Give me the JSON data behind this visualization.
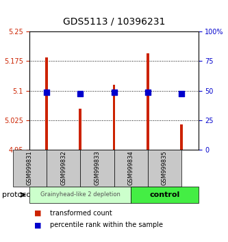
{
  "title": "GDS5113 / 10396231",
  "samples": [
    "GSM999831",
    "GSM999832",
    "GSM999833",
    "GSM999834",
    "GSM999835"
  ],
  "transformed_counts": [
    5.185,
    5.055,
    5.115,
    5.195,
    5.015
  ],
  "percentile_ranks": [
    48.5,
    47.5,
    48.5,
    48.5,
    47.5
  ],
  "baseline": 4.95,
  "ylim_left": [
    4.95,
    5.25
  ],
  "ylim_right": [
    0,
    100
  ],
  "yticks_left": [
    4.95,
    5.025,
    5.1,
    5.175,
    5.25
  ],
  "ytick_labels_left": [
    "4.95",
    "5.025",
    "5.1",
    "5.175",
    "5.25"
  ],
  "yticks_right": [
    0,
    25,
    50,
    75,
    100
  ],
  "ytick_labels_right": [
    "0",
    "25",
    "50",
    "75",
    "100%"
  ],
  "bar_color": "#cc2200",
  "dot_color": "#0000cc",
  "group1_label": "Grainyhead-like 2 depletion",
  "group2_label": "control",
  "group1_bg": "#ccffcc",
  "group2_bg": "#44ee44",
  "label_bg": "#c8c8c8",
  "protocol_label": "protocol",
  "legend_red": "transformed count",
  "legend_blue": "percentile rank within the sample",
  "bar_width": 0.08,
  "dot_size": 30
}
